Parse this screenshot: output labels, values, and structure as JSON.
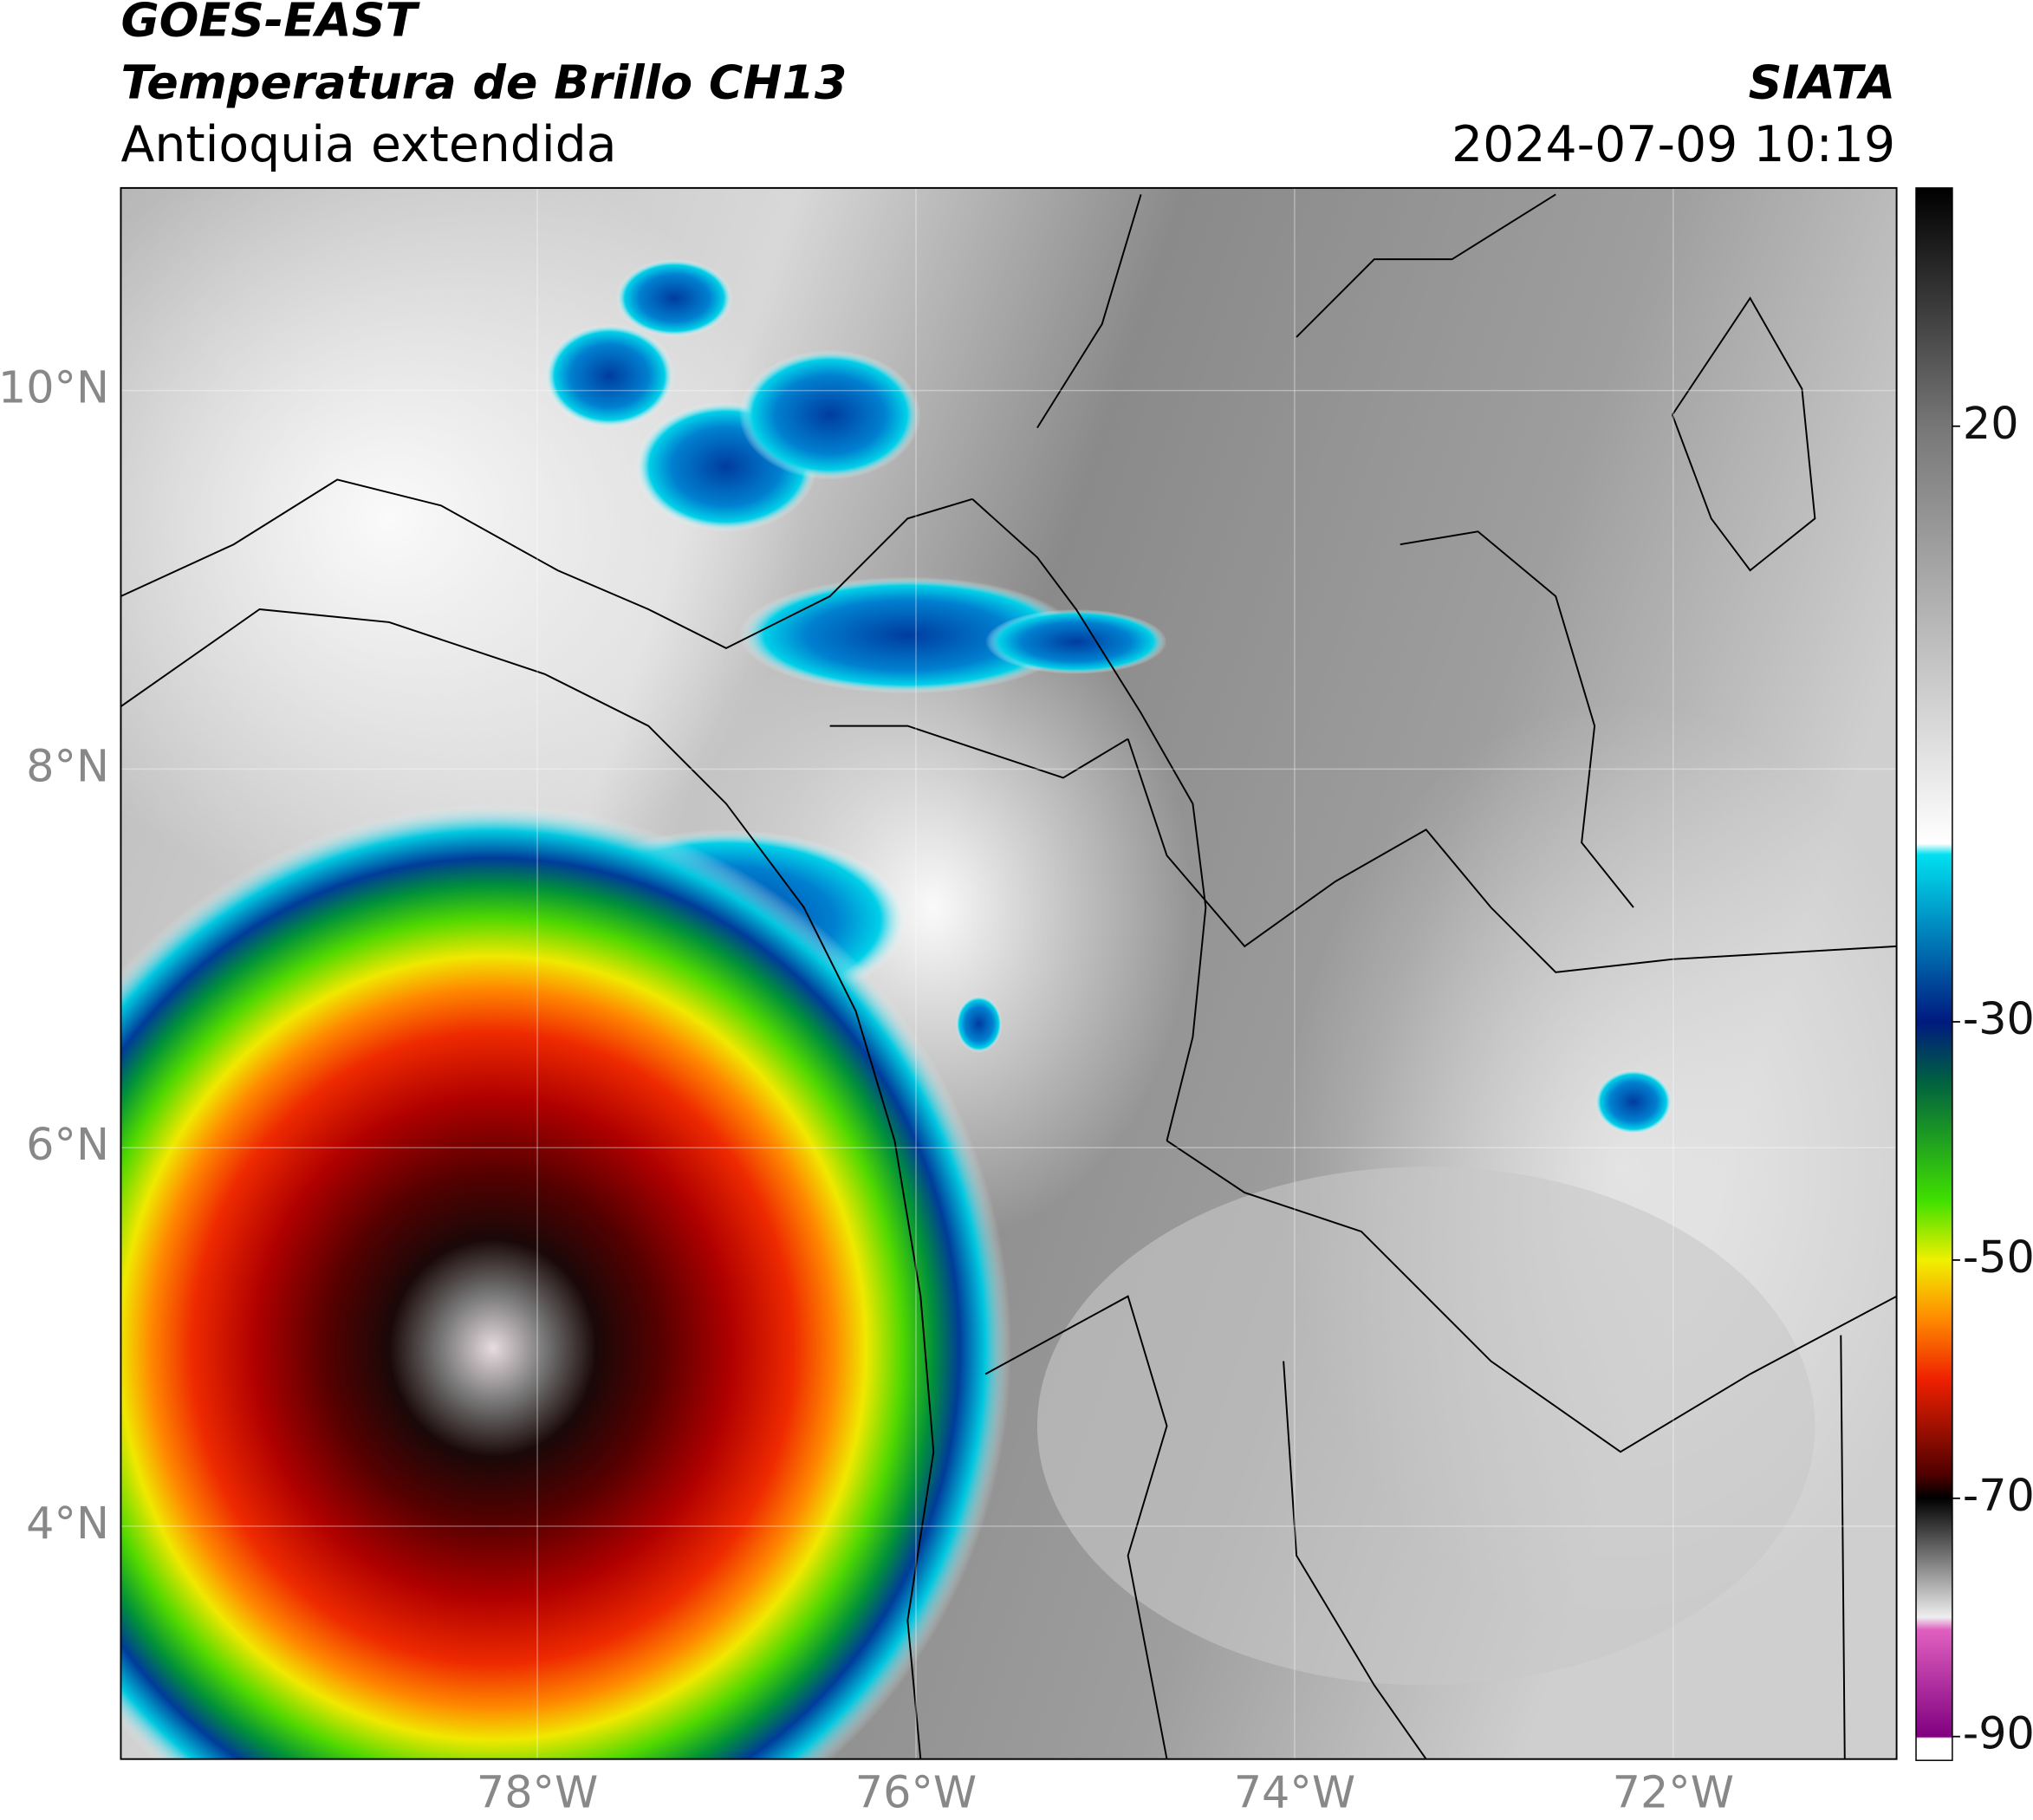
{
  "header": {
    "title": "GOES-EAST",
    "subtitle": "Temperatura de Brillo CH13",
    "region": "Antioquia extendida",
    "source": "SIATA",
    "datetime": "2024-07-09 10:19"
  },
  "map": {
    "xlim": [
      -80.2,
      -70.82
    ],
    "ylim": [
      2.77,
      11.07
    ],
    "xticks": [
      {
        "value": -78,
        "label": "78°W"
      },
      {
        "value": -76,
        "label": "76°W"
      },
      {
        "value": -74,
        "label": "74°W"
      },
      {
        "value": -72,
        "label": "72°W"
      }
    ],
    "yticks": [
      {
        "value": 4,
        "label": "4°N"
      },
      {
        "value": 6,
        "label": "6°N"
      },
      {
        "value": 8,
        "label": "8°N"
      },
      {
        "value": 10,
        "label": "10°N"
      }
    ]
  },
  "colorbar": {
    "lim": [
      -92,
      40
    ],
    "ticks": [
      -90,
      -70,
      -50,
      -30,
      20
    ]
  }
}
